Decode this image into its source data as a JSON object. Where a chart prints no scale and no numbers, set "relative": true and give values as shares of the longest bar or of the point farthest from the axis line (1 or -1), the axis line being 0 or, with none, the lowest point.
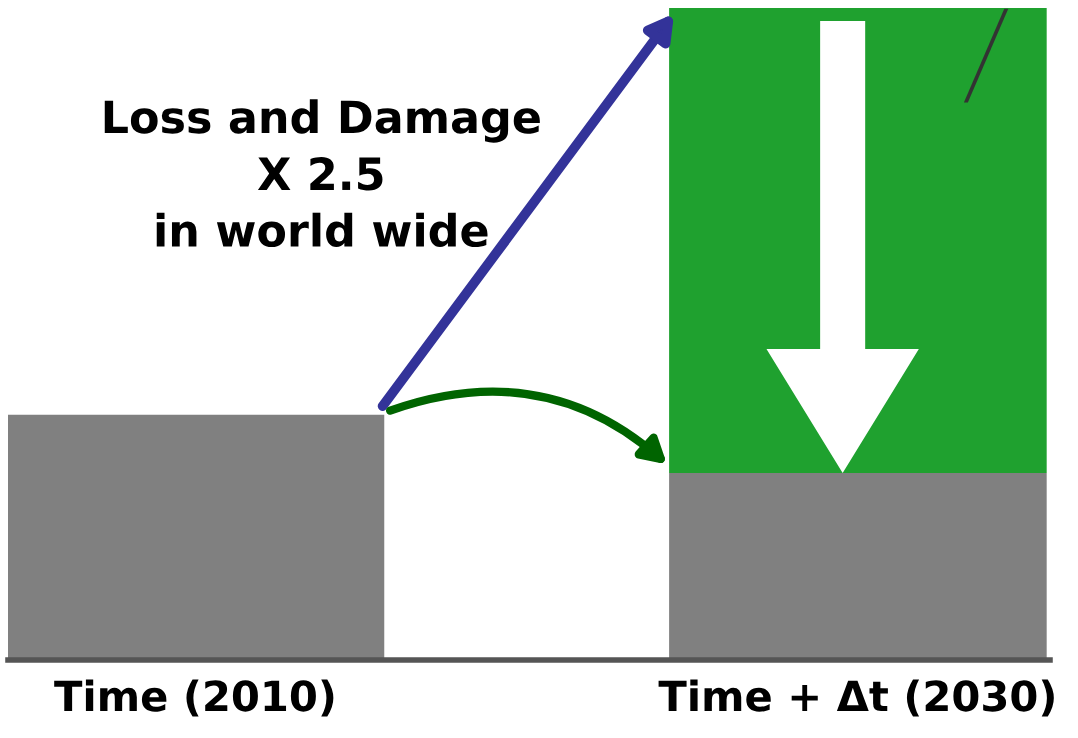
{
  "chart_data": {
    "type": "bar",
    "relative": true,
    "stacked": true,
    "categories": [
      "Time (2010)",
      "Time + Δt (2030)"
    ],
    "series": [
      {
        "color": "#808080",
        "values": [
          0.376,
          0.287
        ]
      },
      {
        "color": "#1fa12f",
        "values": [
          null,
          0.713
        ]
      }
    ],
    "annotations": [
      "Loss and Damage\nX 2.5\nin world wide"
    ]
  }
}
